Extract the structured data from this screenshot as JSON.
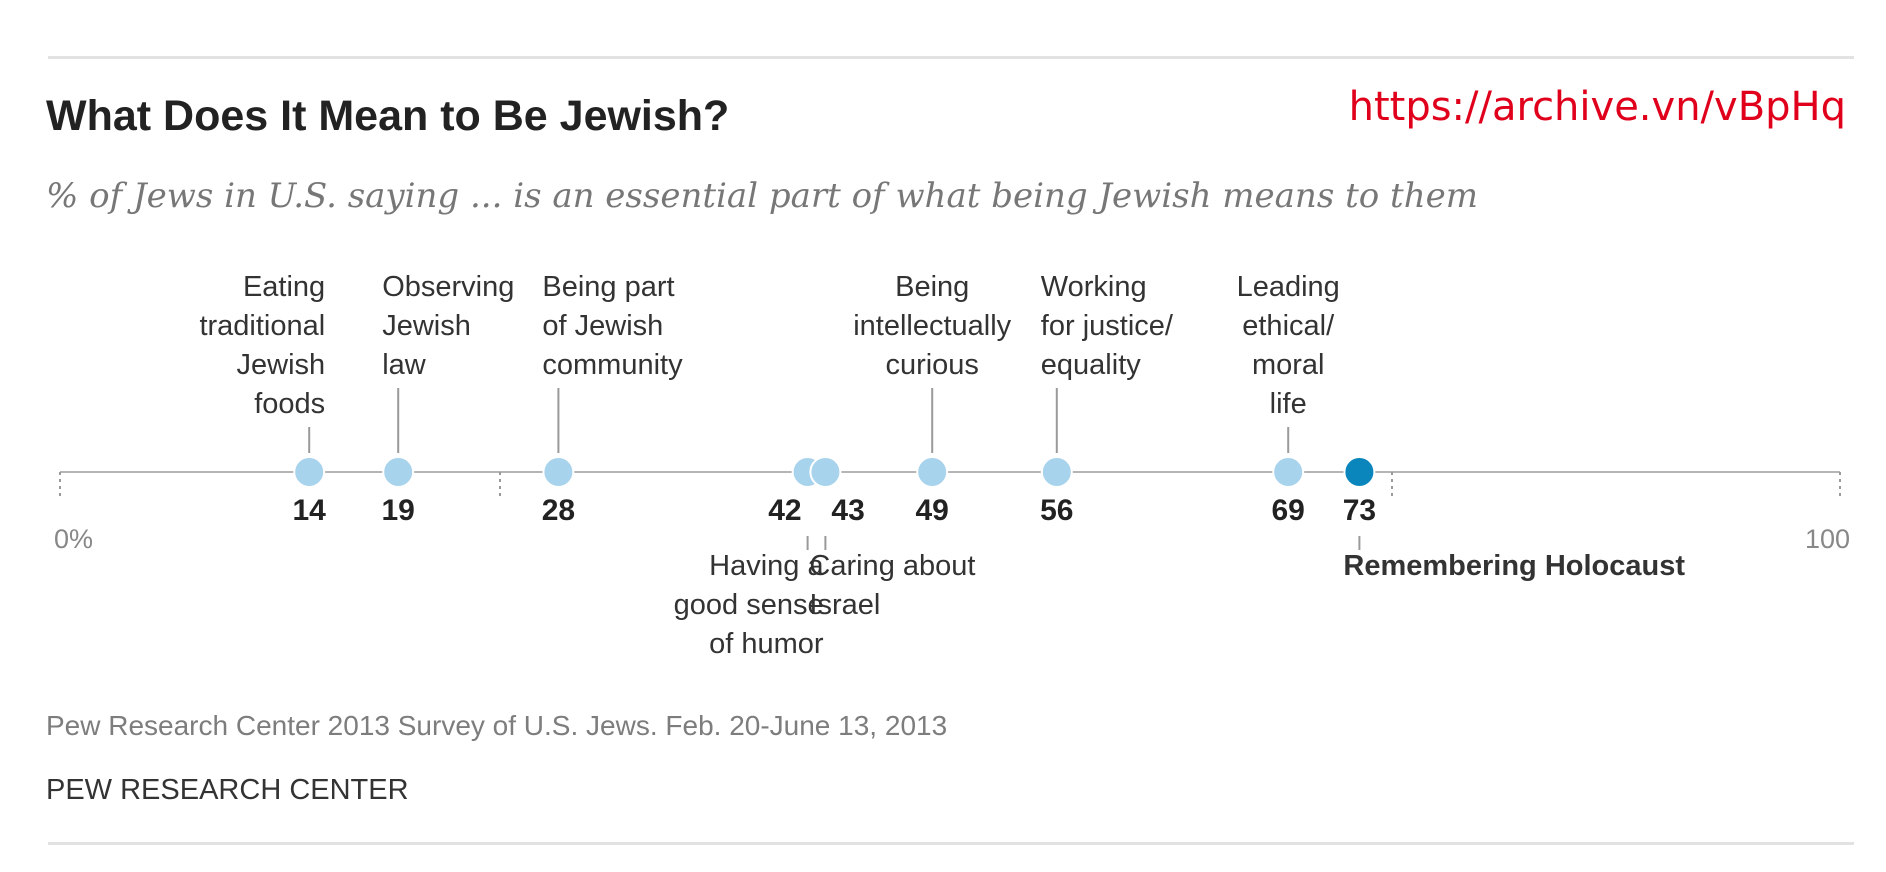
{
  "header": {
    "title": "What Does It Mean to Be Jewish?",
    "link": "https://archive.vn/vBpHq",
    "subtitle": "% of Jews in U.S. saying ... is an essential part of what being Jewish means to them"
  },
  "footer": {
    "source": "Pew Research Center 2013 Survey of U.S. Jews. Feb. 20-June 13, 2013",
    "org": "PEW RESEARCH CENTER"
  },
  "chart_data": {
    "type": "scatter",
    "axis": {
      "min": 0,
      "max": 100,
      "min_label": "0%",
      "max_label": "100"
    },
    "grid": false,
    "colors": {
      "point": "#a8d3ec",
      "highlight": "#0a86bd",
      "axis": "#b5b5b5",
      "label": "#333333",
      "value": "#222222"
    },
    "points": [
      {
        "value": 14,
        "label": [
          "Eating",
          "traditional",
          "Jewish",
          "foods"
        ],
        "position": "above",
        "align": "end"
      },
      {
        "value": 19,
        "label": [
          "Observing",
          "Jewish",
          "law"
        ],
        "position": "above",
        "align": "start"
      },
      {
        "value": 28,
        "label": [
          "Being part",
          "of Jewish",
          "community"
        ],
        "position": "above",
        "align": "start"
      },
      {
        "value": 42,
        "label": [
          "Having a",
          "good sense",
          "of humor"
        ],
        "position": "below",
        "align": "end"
      },
      {
        "value": 43,
        "label": [
          "Caring about",
          "Israel"
        ],
        "position": "below",
        "align": "start"
      },
      {
        "value": 49,
        "label": [
          "Being",
          "intellectually",
          "curious"
        ],
        "position": "above",
        "align": "middle"
      },
      {
        "value": 56,
        "label": [
          "Working",
          "for justice/",
          "equality"
        ],
        "position": "above",
        "align": "start"
      },
      {
        "value": 69,
        "label": [
          "Leading",
          "ethical/",
          "moral",
          "life"
        ],
        "position": "above",
        "align": "middle"
      },
      {
        "value": 73,
        "label": [
          "Remembering Holocaust"
        ],
        "position": "below",
        "align": "start",
        "highlight": true
      }
    ]
  }
}
